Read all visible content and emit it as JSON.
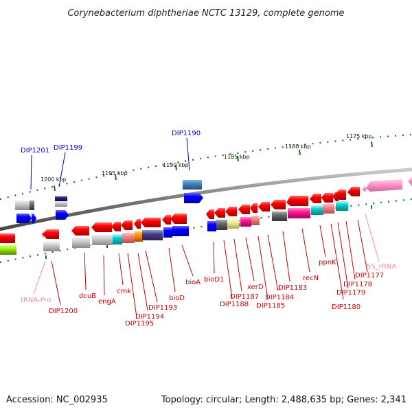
{
  "title": "Corynebacterium diphtheriae NCTC 13129, complete genome",
  "footer": {
    "accession": "Accession: NC_002935",
    "topology": "Topology: circular; Length: 2,488,635 bp; Genes: 2,341"
  },
  "ticks": [
    "1175 kbp",
    "1180 kbp",
    "1185 kbp",
    "1190 kbp",
    "1195 kbp",
    "1200 kbp"
  ],
  "labels": [
    {
      "text": "DIP1201",
      "color": "#0000cc"
    },
    {
      "text": "DIP1199",
      "color": "#0000cc"
    },
    {
      "text": "DIP1190",
      "color": "#0000cc"
    },
    {
      "text": "tRNA-Pro",
      "color": "#ee88bb"
    },
    {
      "text": "DIP1200",
      "color": "#cc0000"
    },
    {
      "text": "dcuB",
      "color": "#cc0000"
    },
    {
      "text": "engA",
      "color": "#cc0000"
    },
    {
      "text": "cmk",
      "color": "#cc0000"
    },
    {
      "text": "DIP1195",
      "color": "#cc0000"
    },
    {
      "text": "DIP1194",
      "color": "#cc0000"
    },
    {
      "text": "DIP1193",
      "color": "#cc0000"
    },
    {
      "text": "bioD",
      "color": "#cc0000"
    },
    {
      "text": "bioA",
      "color": "#cc0000"
    },
    {
      "text": "bioD1",
      "color": "#cc0000"
    },
    {
      "text": "DIP1188",
      "color": "#cc0000"
    },
    {
      "text": "DIP1187",
      "color": "#cc0000"
    },
    {
      "text": "xerD",
      "color": "#cc0000"
    },
    {
      "text": "DIP1185",
      "color": "#cc0000"
    },
    {
      "text": "DIP1184",
      "color": "#cc0000"
    },
    {
      "text": "DIP1183",
      "color": "#cc0000"
    },
    {
      "text": "recN",
      "color": "#cc0000"
    },
    {
      "text": "ppnK",
      "color": "#cc0000"
    },
    {
      "text": "DIP1180",
      "color": "#cc0000"
    },
    {
      "text": "DIP1179",
      "color": "#cc0000"
    },
    {
      "text": "DIP1178",
      "color": "#cc0000"
    },
    {
      "text": "DIP1177",
      "color": "#cc0000"
    },
    {
      "text": "5S_rRNA",
      "color": "#ee88bb"
    }
  ],
  "colors": {
    "backbone": "#888888",
    "forward_gene": "#0000ee",
    "reverse_gene": "#ee0000",
    "tick_mark": "#117711"
  }
}
